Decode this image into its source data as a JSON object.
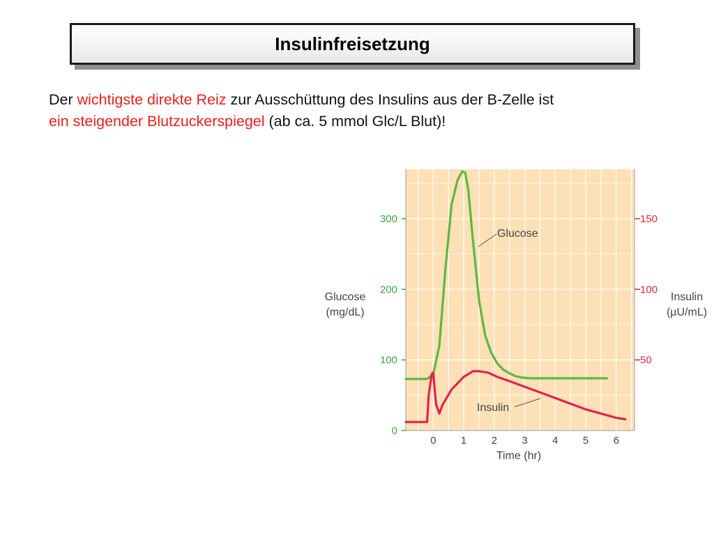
{
  "slide": {
    "title": "Insulinfreisetzung",
    "intro": {
      "p1": "Der ",
      "p2": "wichtigste direkte Reiz",
      "p3": " zur Ausschüttung des Insulins aus der B-Zelle ist",
      "p4": "ein steigender Blutzuckerspiegel",
      "p5": " (ab ca. 5 mmol Glc/L Blut)!"
    }
  },
  "chart_data": {
    "type": "line",
    "xlabel": "Time (hr)",
    "y_left_label": [
      "Glucose",
      "(mg/dL)"
    ],
    "y_right_label": [
      "Insulin",
      "(µU/mL)"
    ],
    "x_ticks": [
      "0",
      "1",
      "2",
      "3",
      "4",
      "5",
      "6"
    ],
    "y_left_ticks": [
      "0",
      "100",
      "200",
      "300"
    ],
    "y_right_ticks": [
      "50",
      "100",
      "150"
    ],
    "xlim": [
      -0.9,
      6.6
    ],
    "y_left_lim": [
      0,
      370
    ],
    "y_right_lim": [
      0,
      185
    ],
    "colors": {
      "plot_background": "#fde0b6",
      "grid": "#ffffff",
      "glucose": "#5cb83a",
      "insulin": "#e0234a"
    },
    "series": [
      {
        "name": "Glucose",
        "axis": "left",
        "x": [
          -0.9,
          -0.2,
          0.0,
          0.2,
          0.4,
          0.6,
          0.8,
          0.95,
          1.05,
          1.15,
          1.3,
          1.5,
          1.7,
          1.9,
          2.1,
          2.3,
          2.5,
          2.7,
          2.9,
          3.2,
          4.0,
          5.0,
          5.7
        ],
        "y": [
          73,
          73,
          80,
          120,
          230,
          320,
          355,
          367,
          365,
          340,
          270,
          185,
          135,
          110,
          95,
          86,
          81,
          77,
          75,
          74,
          74,
          74,
          74
        ]
      },
      {
        "name": "Insulin",
        "axis": "right",
        "x": [
          -0.9,
          -0.2,
          -0.15,
          -0.05,
          0.0,
          0.05,
          0.1,
          0.2,
          0.3,
          0.6,
          1.0,
          1.3,
          1.5,
          1.8,
          2.1,
          2.5,
          3.0,
          3.5,
          4.0,
          4.5,
          5.0,
          5.5,
          6.0,
          6.3
        ],
        "y": [
          6,
          6,
          25,
          40,
          41,
          28,
          18,
          12,
          18,
          29,
          38,
          42,
          42,
          41,
          38,
          35,
          31,
          27,
          23,
          19,
          15,
          12,
          9,
          8
        ]
      }
    ],
    "annotations": [
      "Glucose",
      "Insulin"
    ]
  }
}
